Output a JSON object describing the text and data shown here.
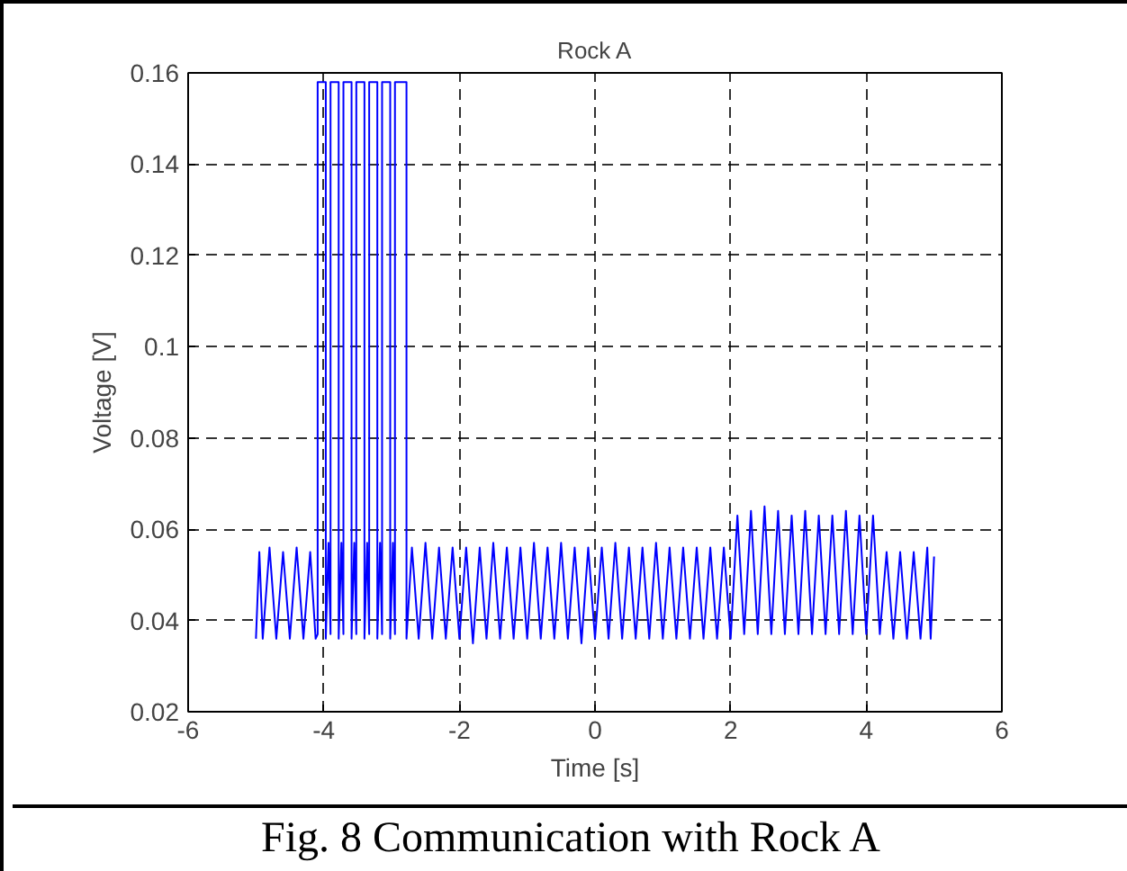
{
  "chart_data": {
    "type": "line",
    "title": "Rock A",
    "xlabel": "Time [s]",
    "ylabel": "Voltage [V]",
    "xlim": [
      -6,
      6
    ],
    "xticks": [
      -6,
      -4,
      -2,
      0,
      2,
      4,
      6
    ],
    "ylim": [
      0.02,
      0.16
    ],
    "yticks": [
      0.02,
      0.04,
      0.06,
      0.08,
      0.1,
      0.12,
      0.14,
      0.16
    ],
    "grid": true,
    "marker": "none",
    "line_style": "solid",
    "annotations": [
      "Fig. 8 Communication with Rock A"
    ],
    "series": [
      {
        "color": "#0000ff",
        "x": [
          -5.0,
          -4.95,
          -4.9,
          -4.8,
          -4.7,
          -4.6,
          -4.5,
          -4.4,
          -4.3,
          -4.2,
          -4.12,
          -4.09,
          -4.09,
          -3.97,
          -3.97,
          -3.93,
          -3.9,
          -3.9,
          -3.78,
          -3.78,
          -3.74,
          -3.71,
          -3.71,
          -3.59,
          -3.59,
          -3.55,
          -3.52,
          -3.52,
          -3.4,
          -3.4,
          -3.36,
          -3.33,
          -3.33,
          -3.21,
          -3.21,
          -3.17,
          -3.14,
          -3.14,
          -3.02,
          -3.02,
          -2.98,
          -2.95,
          -2.95,
          -2.78,
          -2.78,
          -2.7,
          -2.6,
          -2.5,
          -2.4,
          -2.3,
          -2.2,
          -2.1,
          -2.0,
          -1.9,
          -1.8,
          -1.7,
          -1.6,
          -1.5,
          -1.4,
          -1.3,
          -1.2,
          -1.1,
          -1.0,
          -0.9,
          -0.8,
          -0.7,
          -0.6,
          -0.5,
          -0.4,
          -0.3,
          -0.2,
          -0.1,
          0.0,
          0.1,
          0.2,
          0.3,
          0.4,
          0.5,
          0.6,
          0.7,
          0.8,
          0.9,
          1.0,
          1.1,
          1.2,
          1.3,
          1.4,
          1.5,
          1.6,
          1.7,
          1.8,
          1.9,
          2.0,
          2.1,
          2.2,
          2.3,
          2.4,
          2.5,
          2.6,
          2.7,
          2.8,
          2.9,
          3.0,
          3.1,
          3.2,
          3.3,
          3.4,
          3.5,
          3.6,
          3.7,
          3.8,
          3.9,
          4.0,
          4.1,
          4.2,
          4.3,
          4.4,
          4.5,
          4.6,
          4.7,
          4.8,
          4.9,
          4.95,
          5.0
        ],
        "values": [
          0.036,
          0.055,
          0.036,
          0.056,
          0.036,
          0.055,
          0.036,
          0.056,
          0.036,
          0.055,
          0.036,
          0.037,
          0.158,
          0.158,
          0.036,
          0.057,
          0.037,
          0.158,
          0.158,
          0.036,
          0.057,
          0.037,
          0.158,
          0.158,
          0.036,
          0.057,
          0.037,
          0.158,
          0.158,
          0.036,
          0.057,
          0.037,
          0.158,
          0.158,
          0.036,
          0.057,
          0.037,
          0.158,
          0.158,
          0.036,
          0.057,
          0.037,
          0.158,
          0.158,
          0.036,
          0.056,
          0.036,
          0.057,
          0.036,
          0.056,
          0.036,
          0.056,
          0.036,
          0.056,
          0.035,
          0.056,
          0.036,
          0.057,
          0.036,
          0.056,
          0.036,
          0.056,
          0.036,
          0.057,
          0.036,
          0.056,
          0.036,
          0.057,
          0.036,
          0.056,
          0.035,
          0.056,
          0.036,
          0.056,
          0.036,
          0.057,
          0.036,
          0.056,
          0.036,
          0.056,
          0.036,
          0.057,
          0.036,
          0.056,
          0.036,
          0.056,
          0.036,
          0.056,
          0.036,
          0.056,
          0.036,
          0.056,
          0.036,
          0.063,
          0.037,
          0.064,
          0.037,
          0.065,
          0.037,
          0.064,
          0.037,
          0.063,
          0.037,
          0.064,
          0.037,
          0.063,
          0.037,
          0.063,
          0.037,
          0.064,
          0.037,
          0.063,
          0.037,
          0.063,
          0.037,
          0.055,
          0.036,
          0.055,
          0.036,
          0.055,
          0.036,
          0.056,
          0.036,
          0.054
        ]
      }
    ]
  }
}
